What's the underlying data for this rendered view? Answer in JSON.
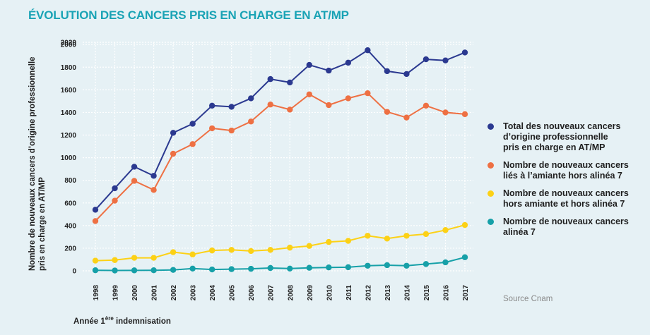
{
  "title": "ÉVOLUTION DES CANCERS PRIS EN CHARGE EN AT/MP",
  "source": "Source Cnam",
  "xlabel_prefix": "Année 1",
  "xlabel_sup": "ère",
  "xlabel_suffix": " indemnisation",
  "colors": {
    "background": "#e6f1f5",
    "title": "#1aa3b5",
    "grid": "#ffffff"
  },
  "chart_data": {
    "type": "line",
    "ylabel": [
      "Nombre de nouveaux cancers d’origine professionnelle",
      "pris en charge en AT/MP"
    ],
    "ylim": [
      0,
      2020
    ],
    "yticks": [
      0,
      200,
      400,
      600,
      800,
      1000,
      1200,
      1400,
      1600,
      1800,
      2000,
      2020
    ],
    "grid": true,
    "legend_position": "right",
    "x": [
      "1998",
      "1999",
      "2000",
      "2001",
      "2002",
      "2003",
      "2004",
      "2005",
      "2006",
      "2007",
      "2008",
      "2009",
      "2010",
      "2011",
      "2012",
      "2013",
      "2014",
      "2015",
      "2016",
      "2017"
    ],
    "series": [
      {
        "name": "Total des nouveaux cancers\nd’origine professionnelle\npris en charge en AT/MP",
        "color": "#2b3990",
        "values": [
          540,
          730,
          920,
          840,
          1220,
          1300,
          1460,
          1450,
          1525,
          1695,
          1665,
          1820,
          1770,
          1840,
          1950,
          1765,
          1740,
          1870,
          1860,
          1930
        ]
      },
      {
        "name": "Nombre de nouveaux cancers\nliés à l’amiante hors alinéa 7",
        "color": "#ee7043",
        "values": [
          440,
          620,
          795,
          715,
          1035,
          1120,
          1260,
          1240,
          1320,
          1470,
          1425,
          1560,
          1465,
          1525,
          1570,
          1405,
          1355,
          1460,
          1400,
          1385
        ]
      },
      {
        "name": "Nombre de nouveaux cancers\nhors amiante et hors alinéa 7",
        "color": "#fcd116",
        "values": [
          90,
          95,
          115,
          115,
          165,
          145,
          180,
          185,
          175,
          185,
          205,
          220,
          255,
          265,
          310,
          285,
          310,
          325,
          360,
          405
        ]
      },
      {
        "name": "Nombre de nouveaux cancers\nalinéa 7",
        "color": "#16a0a8",
        "values": [
          5,
          3,
          4,
          5,
          8,
          20,
          12,
          15,
          18,
          25,
          20,
          27,
          30,
          32,
          45,
          50,
          45,
          60,
          75,
          120
        ]
      }
    ]
  }
}
